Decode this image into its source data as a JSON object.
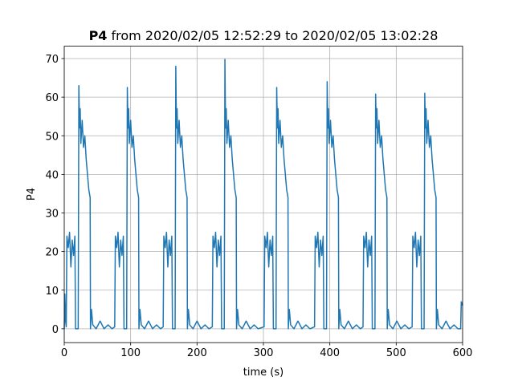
{
  "chart_data": {
    "type": "line",
    "title": {
      "name": "P4",
      "text": "from 2020/02/05 12:52:29 to 2020/02/05 13:02:28"
    },
    "xlabel": "time (s)",
    "ylabel": "P4",
    "color": "#1f77b4",
    "grid": true,
    "xlim": [
      0,
      600
    ],
    "ylim": [
      -3.6,
      73.2
    ],
    "xticks": [
      0,
      100,
      200,
      300,
      400,
      500,
      600
    ],
    "yticks": [
      0,
      10,
      20,
      30,
      40,
      50,
      60,
      70
    ],
    "x": [
      0,
      1,
      2,
      3,
      4,
      6,
      8,
      10,
      12,
      14,
      16,
      17,
      21,
      22,
      23,
      24,
      25,
      27,
      29,
      31,
      33,
      35,
      37,
      39,
      39.5,
      41,
      43,
      48,
      54,
      60,
      66,
      72,
      76,
      77,
      79,
      81,
      83,
      85,
      87,
      89,
      90,
      94,
      95,
      96,
      97,
      98,
      100,
      102,
      104,
      106,
      108,
      110,
      112,
      112.5,
      114,
      116,
      121,
      127,
      133,
      139,
      145,
      149,
      150,
      152,
      154,
      156,
      158,
      160,
      162,
      163,
      167,
      168,
      169,
      170,
      171,
      173,
      175,
      177,
      179,
      181,
      183,
      185,
      185.5,
      187,
      189,
      194,
      200,
      206,
      212,
      218,
      223,
      224,
      226,
      228,
      230,
      232,
      234,
      236,
      237,
      241,
      242,
      243,
      244,
      245,
      247,
      249,
      251,
      253,
      255,
      257,
      259,
      259.5,
      261,
      263,
      268,
      274,
      280,
      286,
      292,
      301,
      302,
      304,
      306,
      308,
      310,
      312,
      314,
      315,
      319,
      320,
      321,
      322,
      323,
      325,
      327,
      329,
      331,
      333,
      335,
      337,
      337.5,
      339,
      341,
      346,
      352,
      358,
      364,
      370,
      377,
      378,
      380,
      382,
      384,
      386,
      388,
      390,
      391,
      395,
      396,
      397,
      398,
      399,
      401,
      403,
      405,
      407,
      409,
      411,
      413,
      413.5,
      415,
      417,
      422,
      428,
      434,
      440,
      446,
      450,
      451,
      453,
      455,
      457,
      459,
      461,
      463,
      464,
      468,
      469,
      470,
      471,
      472,
      474,
      476,
      478,
      480,
      482,
      484,
      486,
      486.5,
      488,
      490,
      495,
      501,
      507,
      513,
      519,
      524,
      525,
      527,
      529,
      531,
      533,
      535,
      537,
      538,
      542,
      543,
      544,
      545,
      546,
      548,
      550,
      552,
      554,
      556,
      558,
      560,
      560.5,
      562,
      564,
      569,
      575,
      581,
      587,
      593,
      597,
      598,
      600
    ],
    "values": [
      0,
      9,
      2,
      0.5,
      24,
      21,
      25,
      16,
      23,
      19,
      24,
      0,
      0,
      63,
      52,
      57,
      48,
      54,
      47,
      50,
      44,
      40,
      36,
      34,
      0,
      5,
      1,
      0,
      2,
      0,
      1,
      0,
      0.5,
      24,
      21,
      25,
      16,
      23,
      19,
      24,
      0,
      0,
      62.5,
      52,
      57,
      48,
      54,
      47,
      50,
      44,
      40,
      36,
      34,
      0,
      5,
      1,
      0,
      2,
      0,
      1,
      0,
      0.5,
      24,
      21,
      25,
      16,
      23,
      19,
      24,
      0,
      0,
      68,
      52,
      57,
      48,
      54,
      47,
      50,
      44,
      40,
      36,
      34,
      0,
      5,
      1,
      0,
      2,
      0,
      1,
      0,
      0.5,
      24,
      21,
      25,
      16,
      23,
      19,
      24,
      0,
      0,
      69.8,
      52,
      57,
      48,
      54,
      47,
      50,
      44,
      40,
      36,
      34,
      0,
      5,
      1,
      0,
      2,
      0,
      1,
      0,
      0.5,
      24,
      21,
      25,
      16,
      23,
      19,
      24,
      0,
      0,
      62.5,
      52,
      57,
      48,
      54,
      47,
      50,
      44,
      40,
      36,
      34,
      0,
      5,
      1,
      0,
      2,
      0,
      1,
      0,
      0.5,
      24,
      21,
      25,
      16,
      23,
      19,
      24,
      0,
      0,
      64,
      52,
      57,
      48,
      54,
      47,
      50,
      44,
      40,
      36,
      34,
      0,
      5,
      1,
      0,
      2,
      0,
      1,
      0,
      0.5,
      24,
      21,
      25,
      16,
      23,
      19,
      24,
      0,
      0,
      60.8,
      52,
      57,
      48,
      54,
      47,
      50,
      44,
      40,
      36,
      34,
      0,
      5,
      1,
      0,
      2,
      0,
      1,
      0,
      0.5,
      24,
      21,
      25,
      16,
      23,
      19,
      24,
      0,
      0,
      61,
      52,
      57,
      48,
      54,
      47,
      50,
      44,
      40,
      36,
      34,
      0,
      5,
      1,
      0,
      2,
      0,
      1,
      0,
      0,
      7,
      6
    ]
  }
}
